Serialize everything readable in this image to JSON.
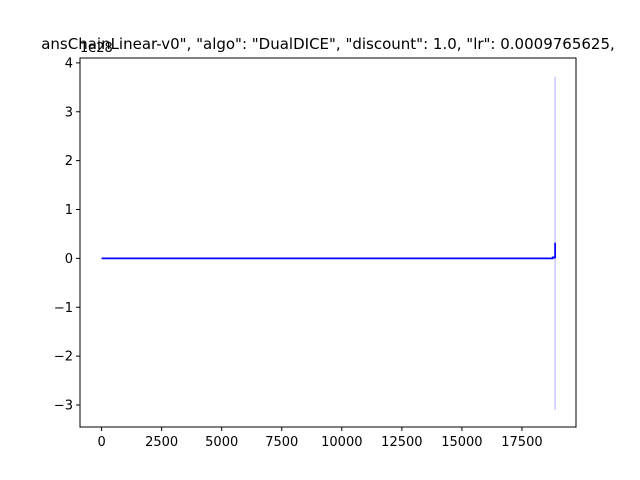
{
  "chart_data": {
    "type": "line",
    "title": "ansChainLinear-v0\", \"algo\": \"DualDICE\", \"discount\": 1.0, \"lr\": 0.0009765625,",
    "y_offset_label": "1e28",
    "xlabel": "",
    "ylabel": "",
    "xlim": [
      -900,
      19750
    ],
    "ylim": [
      -3.45,
      4.1
    ],
    "x_ticks": [
      0,
      2500,
      5000,
      7500,
      10000,
      12500,
      15000,
      17500
    ],
    "x_tick_labels": [
      "0",
      "2500",
      "5000",
      "7500",
      "10000",
      "12500",
      "15000",
      "17500"
    ],
    "y_ticks": [
      -3,
      -2,
      -1,
      0,
      1,
      2,
      3,
      4
    ],
    "y_tick_labels": [
      "−3",
      "−2",
      "−1",
      "0",
      "1",
      "2",
      "3",
      "4"
    ],
    "grid": false,
    "legend": "none",
    "series": [
      {
        "color": "#0000ff",
        "x": [
          0,
          18780,
          18780,
          18880,
          18880,
          18880
        ],
        "y": [
          0,
          0,
          0.02,
          0.02,
          0.32,
          0.0
        ],
        "band": {
          "x": [
            18880
          ],
          "low": [
            -3.1
          ],
          "high": [
            3.72
          ],
          "color": "#0000ff",
          "opacity": 0.22
        }
      }
    ]
  }
}
